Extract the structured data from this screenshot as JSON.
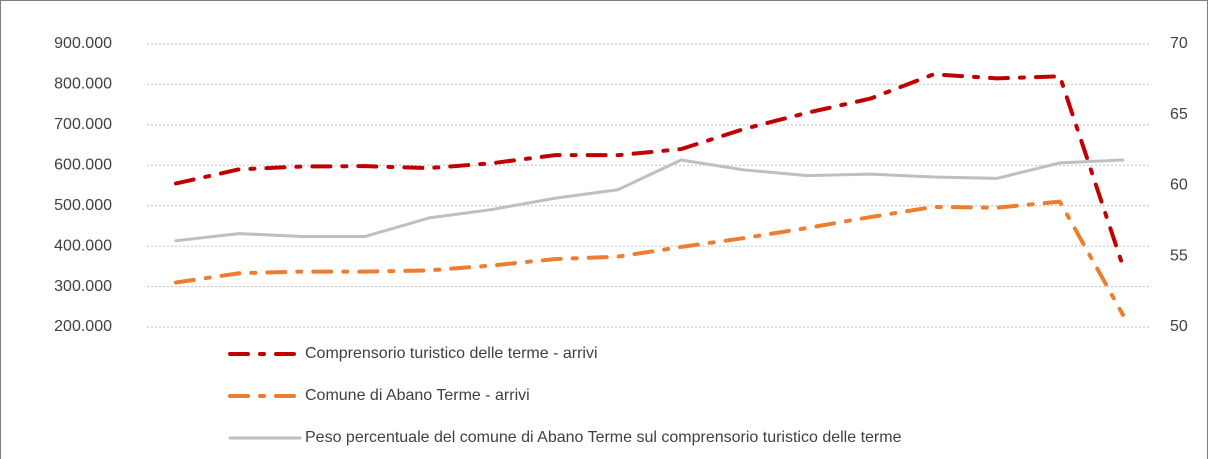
{
  "chart_data": {
    "type": "line",
    "categories": [
      null,
      null,
      null,
      null,
      null,
      null,
      null,
      null,
      null,
      null,
      null,
      null,
      null,
      null,
      null,
      null
    ],
    "series": [
      {
        "name": "Comprensorio turistico delle terme - arrivi",
        "color": "#c00000",
        "dash": "dash-dot",
        "values": [
          555000,
          590000,
          597000,
          598000,
          593000,
          605000,
          625000,
          625000,
          640000,
          690000,
          730000,
          765000,
          825000,
          815000,
          820000,
          350000
        ]
      },
      {
        "name": "Comune di Abano Terme - arrivi",
        "color": "#ed7d31",
        "dash": "dash-dot",
        "values": [
          310000,
          333000,
          337000,
          337000,
          340000,
          352000,
          368000,
          374000,
          398000,
          420000,
          445000,
          472000,
          497000,
          495000,
          510000,
          230000
        ]
      },
      {
        "name": "Peso percentuale del comune di Abano Terme sul comprensorio turistico delle terme",
        "color": "#bfbfbf",
        "dash": "solid",
        "axis": "y2",
        "values": [
          56.1,
          56.6,
          56.4,
          56.4,
          57.7,
          58.3,
          59.1,
          59.7,
          61.8,
          61.1,
          60.7,
          60.8,
          60.6,
          60.5,
          61.6,
          61.8
        ]
      }
    ],
    "ylim": [
      200000,
      900000
    ],
    "yticks": [
      {
        "value": 200000,
        "label": "200.000"
      },
      {
        "value": 300000,
        "label": "300.000"
      },
      {
        "value": 400000,
        "label": "400.000"
      },
      {
        "value": 500000,
        "label": "500.000"
      },
      {
        "value": 600000,
        "label": "600.000"
      },
      {
        "value": 700000,
        "label": "700.000"
      },
      {
        "value": 800000,
        "label": "800.000"
      },
      {
        "value": 900000,
        "label": "900.000"
      }
    ],
    "y2lim": [
      50,
      70
    ],
    "y2ticks": [
      50,
      55,
      60,
      65,
      70
    ],
    "grid": true,
    "legend": "bottom"
  }
}
